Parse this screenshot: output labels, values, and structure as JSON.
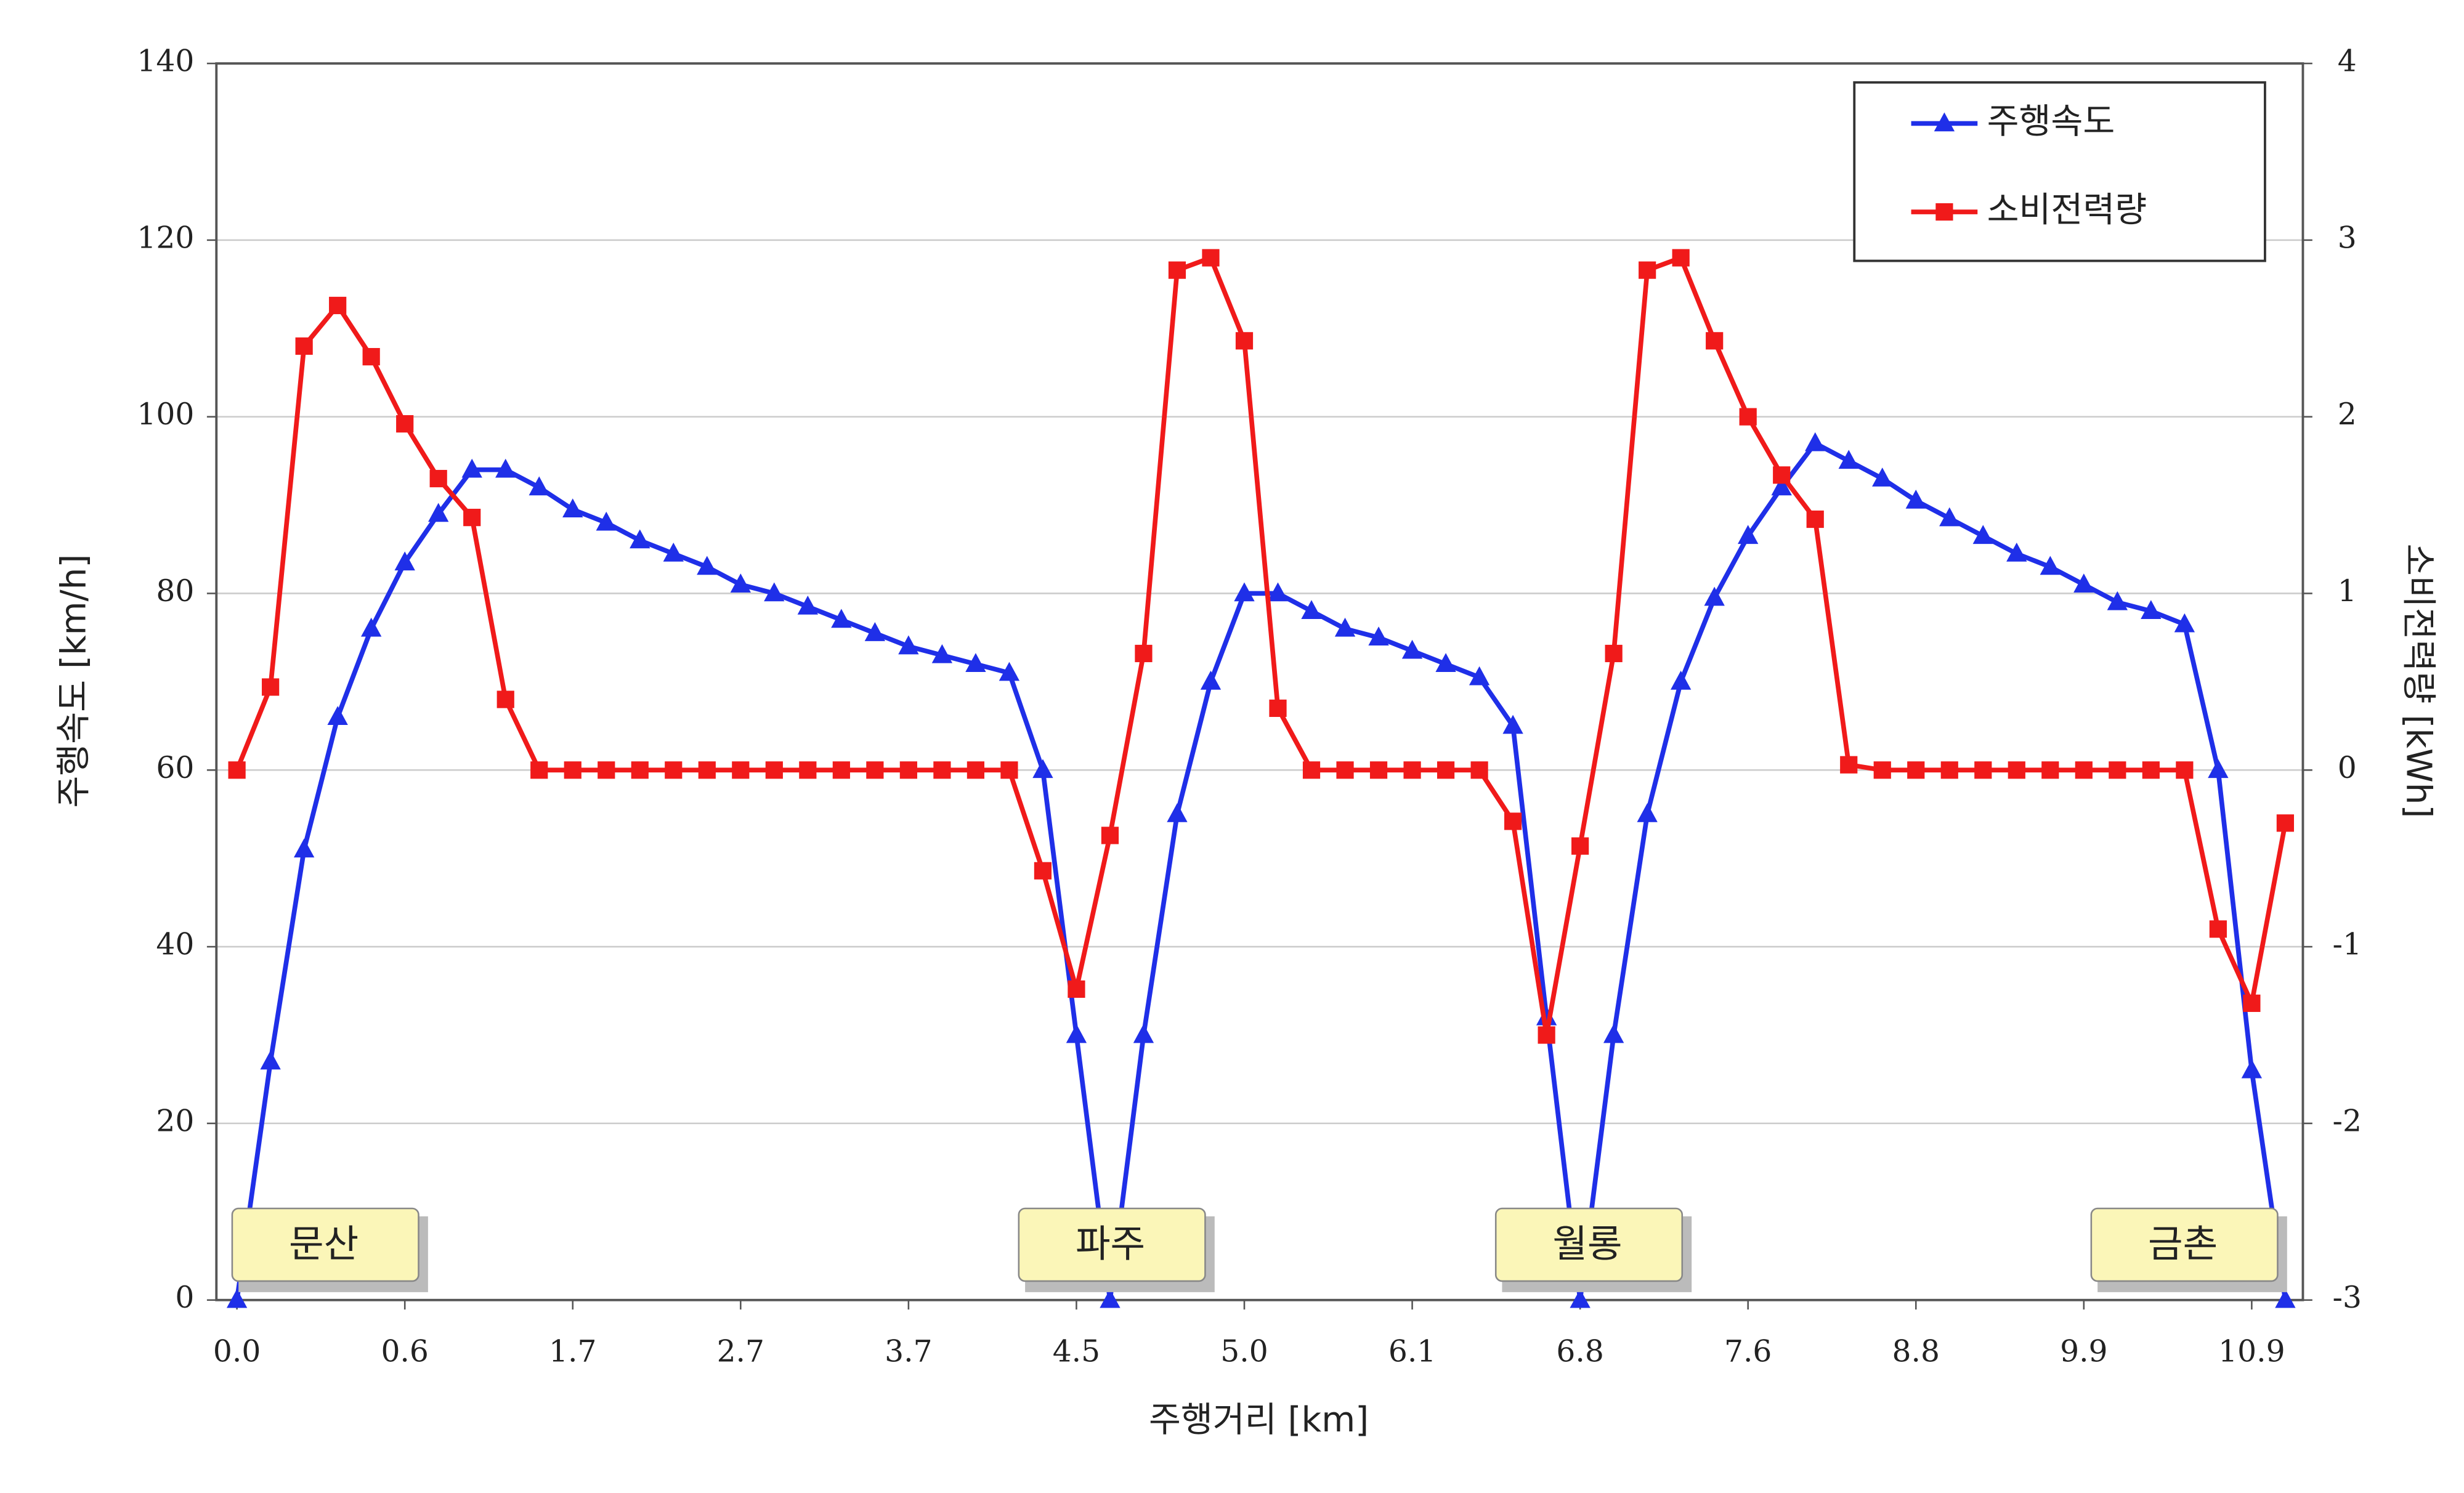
{
  "chart_data": {
    "type": "line",
    "x_label": "주행거리 [km]",
    "y_label": "주행속도 [km/h]",
    "y2_label": "소비전력량 [kWh]",
    "categories": [
      "0.0",
      null,
      null,
      null,
      null,
      "0.6",
      null,
      null,
      null,
      null,
      "1.7",
      null,
      null,
      null,
      null,
      "2.7",
      null,
      null,
      null,
      null,
      "3.7",
      null,
      null,
      null,
      null,
      "4.5",
      null,
      null,
      null,
      null,
      "5.0",
      null,
      null,
      null,
      null,
      "6.1",
      null,
      null,
      null,
      null,
      "6.8",
      null,
      null,
      null,
      null,
      "7.6",
      null,
      null,
      null,
      null,
      "8.8",
      null,
      null,
      null,
      null,
      "9.9",
      null,
      null,
      null,
      null,
      "10.9",
      null
    ],
    "series": [
      {
        "name": "주행속도",
        "color": "#1f2fe8",
        "marker": "triangle",
        "values": [
          0,
          27,
          51,
          66,
          76,
          83.5,
          89,
          94,
          94,
          92,
          89.5,
          88,
          86,
          84.5,
          83,
          81,
          80,
          78.5,
          77,
          75.5,
          74,
          73,
          72,
          71,
          60,
          30,
          0,
          30,
          55,
          70,
          80,
          80,
          78,
          76,
          75,
          73.5,
          72,
          70.5,
          65,
          32,
          0,
          30,
          55,
          70,
          79.5,
          86.5,
          92,
          97,
          95,
          93,
          90.5,
          88.5,
          86.5,
          84.5,
          83,
          81,
          79,
          78,
          76.5,
          60,
          26,
          0
        ]
      },
      {
        "name": "소비전력량",
        "color": "#f01a1a",
        "marker": "square",
        "axis": "y2",
        "values": [
          0,
          0.47,
          2.4,
          2.63,
          2.34,
          1.96,
          1.65,
          1.43,
          0.4,
          0,
          0,
          0,
          0,
          0,
          0,
          0,
          0,
          0,
          0,
          0,
          0,
          0,
          0,
          0,
          -0.57,
          -1.24,
          -0.37,
          0.66,
          2.83,
          2.9,
          2.43,
          0.35,
          0,
          0,
          0,
          0,
          0,
          0,
          -0.29,
          -1.5,
          -0.43,
          0.66,
          2.83,
          2.9,
          2.43,
          2.0,
          1.67,
          1.42,
          0.03,
          0,
          0,
          0,
          0,
          0,
          0,
          0,
          0,
          0,
          0,
          -0.9,
          -1.32,
          -0.3
        ]
      }
    ],
    "ylim": [
      0,
      140
    ],
    "yticks": [
      0,
      20,
      40,
      60,
      80,
      100,
      120,
      140
    ],
    "y2lim": [
      -3,
      4
    ],
    "y2ticks": [
      -3,
      -2,
      -1,
      0,
      1,
      2,
      3,
      4
    ],
    "grid": true,
    "legend": "upper right",
    "annotations": [
      "문산",
      "파주",
      "월롱",
      "금촌"
    ]
  }
}
